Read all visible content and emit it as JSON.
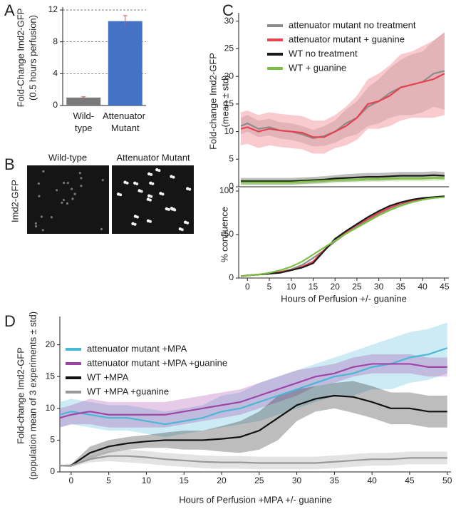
{
  "chart_data": [
    {
      "type": "bar",
      "panel_label": "A",
      "ylabel": [
        "Fold-Change Imd2-GFP",
        "(0.5 hours perfusion)"
      ],
      "categories": [
        "Wild-type",
        "Attenuator Mutant"
      ],
      "values": [
        1,
        10.6
      ],
      "errors": [
        0.1,
        0.7
      ],
      "colors": [
        "#7a7a7a",
        "#4472c4"
      ],
      "error_color": "#d9534f",
      "ylim": [
        0,
        12
      ],
      "yticks": [
        0,
        4,
        8,
        12
      ],
      "grid": true
    },
    {
      "type": "line",
      "panel_label": "C",
      "ylabel": [
        "Fold-change Imd2-GFP",
        "(mean ± std)"
      ],
      "x": [
        -1.5,
        0,
        2.5,
        5,
        7.5,
        10,
        12.5,
        15,
        17.5,
        20,
        22.5,
        25,
        27.5,
        30,
        32.5,
        35,
        37.5,
        40,
        42.5,
        45
      ],
      "xlim": [
        -2,
        46
      ],
      "ylim": [
        0,
        31
      ],
      "yticks": [
        0,
        5,
        10,
        15,
        20,
        25,
        30
      ],
      "legend": "upper left",
      "series": [
        {
          "name": "attenuator mutant no treatment",
          "color": "#8c8c8c",
          "values": [
            11,
            11.5,
            10.5,
            10.8,
            10.2,
            10,
            9.5,
            8.8,
            9.2,
            10,
            11.5,
            12.5,
            14.5,
            15.5,
            17,
            18,
            18.5,
            19,
            20.5,
            21
          ],
          "errors": [
            1.5,
            1.5,
            1.5,
            1.5,
            1.5,
            1.5,
            1.5,
            1.5,
            1.8,
            2,
            2.5,
            3,
            3.5,
            4,
            4.5,
            5,
            5.5,
            5.5,
            6,
            7
          ]
        },
        {
          "name": "attenuator mutant + guanine",
          "color": "#e8424f",
          "values": [
            10.5,
            10.8,
            10,
            10.5,
            10.2,
            10,
            9.8,
            9,
            9,
            10,
            11,
            12.5,
            15,
            15.5,
            16.5,
            18,
            18.5,
            19,
            19.5,
            20.5
          ],
          "errors": [
            3,
            3,
            3,
            3,
            3,
            3,
            3,
            3,
            3,
            3,
            3.5,
            4,
            4.5,
            5,
            5.5,
            6,
            6,
            6.5,
            7,
            7.5
          ]
        },
        {
          "name": "WT no treatment",
          "color": "#1a1a1a",
          "values": [
            1,
            1,
            1,
            1,
            1,
            1,
            1.1,
            1.2,
            1.3,
            1.5,
            1.6,
            1.7,
            1.8,
            1.8,
            1.9,
            2,
            2,
            2,
            2.1,
            2
          ],
          "errors": [
            0.6,
            0.6,
            0.6,
            0.6,
            0.6,
            0.6,
            0.6,
            0.6,
            0.6,
            0.6,
            0.7,
            0.7,
            0.7,
            0.7,
            0.7,
            0.7,
            0.7,
            0.7,
            0.7,
            0.7
          ]
        },
        {
          "name": "WT + guanine",
          "color": "#7cc142",
          "values": [
            0.8,
            0.8,
            0.8,
            0.8,
            0.8,
            0.8,
            0.9,
            1,
            1.1,
            1.2,
            1.3,
            1.3,
            1.4,
            1.4,
            1.5,
            1.5,
            1.5,
            1.5,
            1.6,
            1.6
          ],
          "errors": [
            0.5,
            0.5,
            0.5,
            0.5,
            0.5,
            0.5,
            0.5,
            0.5,
            0.5,
            0.5,
            0.5,
            0.5,
            0.5,
            0.5,
            0.5,
            0.5,
            0.5,
            0.5,
            0.5,
            0.5
          ]
        }
      ]
    },
    {
      "type": "line",
      "ylabel": [
        "% confluence"
      ],
      "xlabel": "Hours of Perfusion +/- guanine",
      "x": [
        -1.5,
        0,
        2.5,
        5,
        7.5,
        10,
        12.5,
        15,
        17.5,
        20,
        22.5,
        25,
        27.5,
        30,
        32.5,
        35,
        37.5,
        40,
        42.5,
        45
      ],
      "xlim": [
        -2,
        46
      ],
      "xticks": [
        0,
        5,
        10,
        15,
        20,
        25,
        30,
        35,
        40,
        45
      ],
      "ylim": [
        0,
        100
      ],
      "yticks": [
        0,
        50,
        100
      ],
      "series": [
        {
          "color": "#8c8c8c",
          "values": [
            2,
            3,
            4,
            5,
            7,
            10,
            15,
            23,
            32,
            42,
            51,
            59,
            67,
            74,
            80,
            85,
            88,
            91,
            93,
            94
          ]
        },
        {
          "color": "#e8424f",
          "values": [
            2,
            3,
            4,
            5,
            7,
            9,
            13,
            19,
            32,
            44,
            53,
            61,
            68,
            75,
            81,
            86,
            89,
            91,
            93,
            94
          ]
        },
        {
          "color": "#1a1a1a",
          "values": [
            2,
            3,
            4,
            5,
            6,
            9,
            12,
            17,
            31,
            45,
            54,
            62,
            70,
            77,
            83,
            87,
            90,
            92,
            93,
            94
          ]
        },
        {
          "color": "#7cc142",
          "values": [
            2,
            3,
            4,
            6,
            9,
            13,
            19,
            27,
            35,
            43,
            51,
            58,
            65,
            72,
            78,
            83,
            87,
            90,
            92,
            93
          ]
        }
      ]
    },
    {
      "type": "line",
      "panel_label": "D",
      "ylabel": [
        "Fold-change Imd2-GFP",
        "(population mean of 3 experiments ± std)"
      ],
      "xlabel": "Hours of Perfusion +MPA +/- guanine",
      "x": [
        -1.5,
        0,
        2.5,
        5,
        7.5,
        10,
        12.5,
        15,
        17.5,
        20,
        22.5,
        25,
        27.5,
        30,
        32.5,
        35,
        37.5,
        40,
        42.5,
        45,
        47.5,
        50
      ],
      "xlim": [
        -1.5,
        50.5
      ],
      "xticks": [
        0,
        5,
        10,
        15,
        20,
        25,
        30,
        35,
        40,
        45,
        50
      ],
      "ylim": [
        0,
        24
      ],
      "yticks": [
        0,
        5,
        10,
        15,
        20
      ],
      "legend": "upper left",
      "series": [
        {
          "name": "attenuator mutant +MPA",
          "color": "#4ab8d8",
          "values": [
            9,
            9.5,
            9,
            8.5,
            8.5,
            8,
            7.5,
            8,
            8.5,
            9.5,
            10,
            11,
            12,
            13,
            14,
            15,
            15.5,
            16.5,
            17,
            18,
            18.5,
            19.5
          ],
          "errors": [
            2,
            2,
            2,
            2,
            2,
            2,
            2,
            2,
            2,
            2.5,
            2.5,
            3,
            3,
            3,
            3,
            3,
            3.5,
            3.5,
            4,
            4,
            4,
            4
          ]
        },
        {
          "name": "attenuator mutant +MPA +guanine",
          "color": "#a045a8",
          "values": [
            8.5,
            9,
            9.5,
            9,
            9,
            9,
            9,
            9.5,
            10,
            10.5,
            11,
            12,
            13,
            14,
            15,
            15.5,
            16.5,
            17,
            17,
            17,
            16.5,
            16.5
          ],
          "errors": [
            1.5,
            1.5,
            2,
            2,
            2,
            2,
            2,
            2,
            2,
            2,
            2,
            2,
            2,
            2,
            1.5,
            1.5,
            1.5,
            1.5,
            1.5,
            1.5,
            1.5,
            1.5
          ]
        },
        {
          "name": "WT +MPA",
          "color": "#111111",
          "values": [
            1,
            1,
            3,
            4,
            4.5,
            4.8,
            5,
            5,
            5,
            5.2,
            5.5,
            6.5,
            8.5,
            10.5,
            11.5,
            12,
            11.8,
            11,
            10,
            10,
            9.5,
            9.5
          ],
          "errors": [
            0.1,
            0.2,
            1,
            1,
            1,
            1,
            1.2,
            1.5,
            1.5,
            2,
            2.5,
            3,
            3.5,
            2.5,
            2,
            2,
            2.5,
            2.5,
            2.5,
            2.5,
            2.5,
            2.5
          ]
        },
        {
          "name": "WT +MPA +guanine",
          "color": "#999999",
          "values": [
            1,
            1,
            2,
            2.5,
            2.5,
            2.3,
            2,
            1.8,
            1.6,
            1.5,
            1.5,
            1.4,
            1.4,
            1.4,
            1.4,
            1.6,
            1.8,
            2,
            2,
            2.2,
            2.2,
            2.2
          ],
          "errors": [
            0.1,
            0.2,
            0.5,
            0.8,
            1,
            1,
            1,
            1,
            1,
            1,
            1,
            1,
            1,
            1,
            1,
            1,
            1,
            1,
            1,
            1,
            1,
            1
          ]
        }
      ]
    }
  ],
  "micrographs": {
    "panel_label": "B",
    "ylabel": "Imd2-GFP",
    "titles": [
      "Wild-type",
      "Attenuator Mutant"
    ]
  }
}
